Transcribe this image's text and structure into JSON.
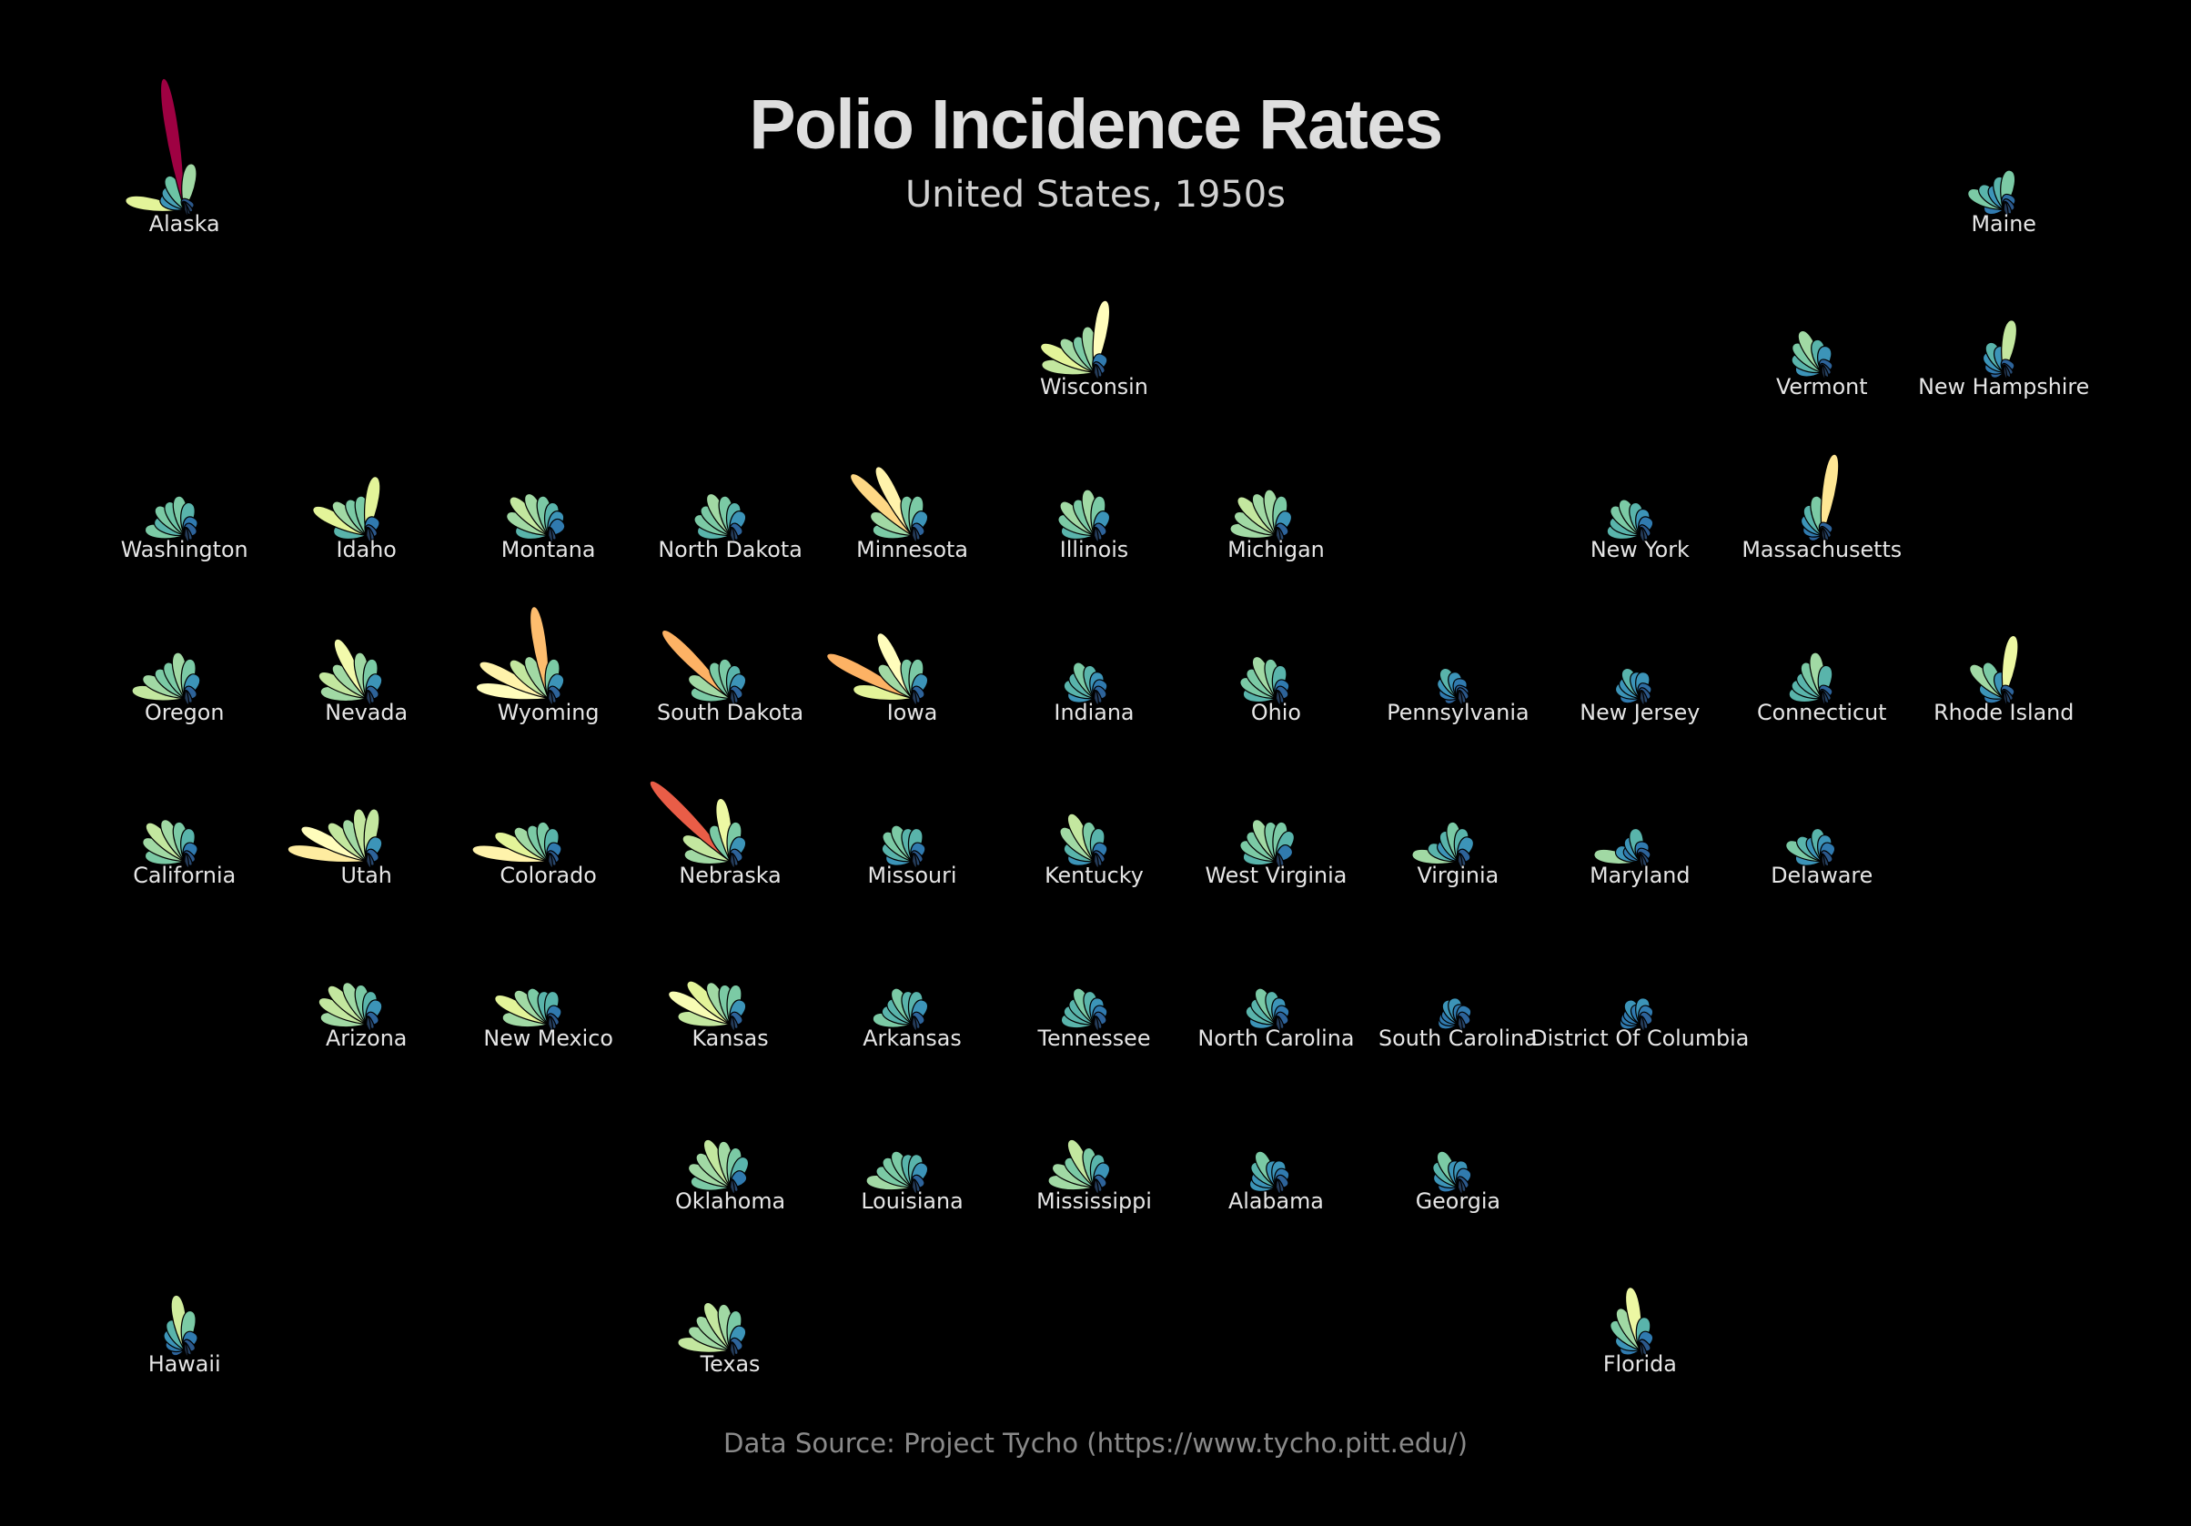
{
  "chart_data": {
    "type": "petal",
    "title": "Polio Incidence Rates",
    "subtitle": "United States, 1950s",
    "source": "Data Source: Project Tycho (https://www.tycho.pitt.edu/)",
    "colors": [
      "#202838",
      "#2c5f96",
      "#3288bd",
      "#66c2a5",
      "#abdda4",
      "#e6f598",
      "#ffffbf",
      "#fee08b",
      "#fdae61",
      "#f46d43",
      "#d53e4f",
      "#9e0142"
    ],
    "series": [
      {
        "name": "Alaska",
        "values": [
          45,
          20,
          22,
          28,
          100,
          35,
          8,
          5,
          3,
          2
        ]
      },
      {
        "name": "Maine",
        "values": [
          15,
          30,
          25,
          20,
          25,
          30,
          12,
          8,
          5,
          3
        ]
      },
      {
        "name": "Wisconsin",
        "values": [
          40,
          45,
          35,
          30,
          35,
          55,
          15,
          8,
          5,
          3
        ]
      },
      {
        "name": "Vermont",
        "values": [
          20,
          25,
          30,
          35,
          25,
          20,
          10,
          6,
          4,
          2
        ]
      },
      {
        "name": "New Hampshire",
        "values": [
          10,
          15,
          20,
          25,
          20,
          40,
          10,
          6,
          4,
          2
        ]
      },
      {
        "name": "Washington",
        "values": [
          30,
          25,
          30,
          28,
          30,
          25,
          15,
          10,
          5,
          3
        ]
      },
      {
        "name": "Idaho",
        "values": [
          25,
          45,
          35,
          30,
          30,
          45,
          15,
          8,
          5,
          3
        ]
      },
      {
        "name": "Montana",
        "values": [
          25,
          35,
          40,
          35,
          30,
          25,
          20,
          15,
          5,
          3
        ]
      },
      {
        "name": "North Dakota",
        "values": [
          25,
          30,
          30,
          35,
          30,
          25,
          20,
          10,
          5,
          3
        ]
      },
      {
        "name": "Minnesota",
        "values": [
          30,
          35,
          65,
          58,
          30,
          30,
          20,
          10,
          5,
          3
        ]
      },
      {
        "name": "Illinois",
        "values": [
          25,
          30,
          35,
          30,
          35,
          30,
          20,
          10,
          5,
          3
        ]
      },
      {
        "name": "Michigan",
        "values": [
          35,
          35,
          40,
          35,
          35,
          30,
          20,
          10,
          5,
          3
        ]
      },
      {
        "name": "New York",
        "values": [
          25,
          25,
          30,
          30,
          25,
          20,
          15,
          8,
          5,
          3
        ]
      },
      {
        "name": "Massachusetts",
        "values": [
          10,
          15,
          20,
          25,
          30,
          62,
          10,
          6,
          4,
          2
        ]
      },
      {
        "name": "Oregon",
        "values": [
          40,
          35,
          30,
          30,
          35,
          30,
          20,
          10,
          5,
          3
        ]
      },
      {
        "name": "Nevada",
        "values": [
          35,
          40,
          35,
          50,
          35,
          30,
          20,
          10,
          5,
          3
        ]
      },
      {
        "name": "Wyoming",
        "values": [
          55,
          58,
          40,
          35,
          70,
          30,
          20,
          10,
          5,
          3
        ]
      },
      {
        "name": "South Dakota",
        "values": [
          30,
          35,
          72,
          30,
          30,
          25,
          20,
          10,
          5,
          3
        ]
      },
      {
        "name": "Iowa",
        "values": [
          45,
          72,
          35,
          55,
          30,
          30,
          20,
          10,
          5,
          3
        ]
      },
      {
        "name": "Indiana",
        "values": [
          20,
          25,
          25,
          30,
          25,
          20,
          15,
          10,
          5,
          3
        ]
      },
      {
        "name": "Ohio",
        "values": [
          25,
          30,
          30,
          35,
          30,
          25,
          15,
          10,
          5,
          3
        ]
      },
      {
        "name": "Pennsylvania",
        "values": [
          10,
          15,
          20,
          25,
          20,
          15,
          10,
          8,
          5,
          3
        ]
      },
      {
        "name": "New Jersey",
        "values": [
          15,
          20,
          20,
          25,
          20,
          20,
          12,
          8,
          5,
          3
        ]
      },
      {
        "name": "Connecticut",
        "values": [
          25,
          25,
          25,
          30,
          35,
          25,
          10,
          6,
          4,
          2
        ]
      },
      {
        "name": "Rhode Island",
        "values": [
          15,
          20,
          35,
          30,
          20,
          48,
          10,
          6,
          4,
          2
        ]
      },
      {
        "name": "California",
        "values": [
          30,
          35,
          40,
          35,
          30,
          25,
          15,
          8,
          5,
          3
        ]
      },
      {
        "name": "Utah",
        "values": [
          60,
          55,
          40,
          35,
          40,
          40,
          20,
          10,
          5,
          3
        ]
      },
      {
        "name": "Colorado",
        "values": [
          58,
          45,
          35,
          30,
          30,
          25,
          15,
          8,
          5,
          3
        ]
      },
      {
        "name": "Nebraska",
        "values": [
          35,
          40,
          85,
          30,
          48,
          30,
          20,
          10,
          5,
          3
        ]
      },
      {
        "name": "Missouri",
        "values": [
          20,
          25,
          30,
          30,
          25,
          25,
          15,
          8,
          5,
          3
        ]
      },
      {
        "name": "Kentucky",
        "values": [
          20,
          25,
          35,
          40,
          30,
          25,
          15,
          8,
          5,
          3
        ]
      },
      {
        "name": "West Virginia",
        "values": [
          25,
          30,
          30,
          35,
          30,
          30,
          25,
          15,
          5,
          3
        ]
      },
      {
        "name": "Virginia",
        "values": [
          35,
          25,
          20,
          25,
          30,
          25,
          20,
          10,
          5,
          3
        ]
      },
      {
        "name": "Maryland",
        "values": [
          35,
          20,
          15,
          20,
          25,
          15,
          10,
          6,
          4,
          2
        ]
      },
      {
        "name": "Delaware",
        "values": [
          20,
          30,
          25,
          20,
          25,
          20,
          15,
          8,
          4,
          2
        ]
      },
      {
        "name": "Arizona",
        "values": [
          35,
          40,
          40,
          35,
          30,
          25,
          20,
          10,
          5,
          3
        ]
      },
      {
        "name": "New Mexico",
        "values": [
          35,
          45,
          35,
          30,
          25,
          25,
          15,
          8,
          5,
          3
        ]
      },
      {
        "name": "Kansas",
        "values": [
          40,
          52,
          45,
          35,
          30,
          30,
          20,
          10,
          5,
          3
        ]
      },
      {
        "name": "Arkansas",
        "values": [
          30,
          25,
          25,
          30,
          25,
          25,
          20,
          10,
          5,
          3
        ]
      },
      {
        "name": "Tennessee",
        "values": [
          25,
          25,
          25,
          30,
          25,
          20,
          15,
          10,
          5,
          3
        ]
      },
      {
        "name": "North Carolina",
        "values": [
          20,
          25,
          25,
          30,
          25,
          20,
          15,
          10,
          5,
          3
        ]
      },
      {
        "name": "South Carolina",
        "values": [
          15,
          15,
          15,
          20,
          20,
          15,
          15,
          10,
          5,
          3
        ]
      },
      {
        "name": "District Of Columbia",
        "values": [
          15,
          15,
          15,
          20,
          15,
          20,
          15,
          10,
          5,
          3
        ]
      },
      {
        "name": "Oklahoma",
        "values": [
          30,
          35,
          35,
          40,
          35,
          30,
          25,
          15,
          5,
          3
        ]
      },
      {
        "name": "Louisiana",
        "values": [
          35,
          30,
          30,
          30,
          25,
          25,
          20,
          10,
          5,
          3
        ]
      },
      {
        "name": "Mississippi",
        "values": [
          35,
          35,
          30,
          40,
          30,
          25,
          20,
          10,
          5,
          3
        ]
      },
      {
        "name": "Alabama",
        "values": [
          20,
          20,
          25,
          30,
          20,
          20,
          15,
          10,
          5,
          3
        ]
      },
      {
        "name": "Georgia",
        "values": [
          15,
          20,
          25,
          30,
          20,
          20,
          15,
          8,
          5,
          3
        ]
      },
      {
        "name": "Hawaii",
        "values": [
          10,
          15,
          20,
          25,
          42,
          30,
          15,
          8,
          4,
          2
        ]
      },
      {
        "name": "Texas",
        "values": [
          40,
          35,
          35,
          40,
          35,
          30,
          20,
          10,
          5,
          3
        ]
      },
      {
        "name": "Florida",
        "values": [
          15,
          20,
          30,
          35,
          48,
          25,
          15,
          8,
          4,
          2
        ]
      }
    ]
  }
}
